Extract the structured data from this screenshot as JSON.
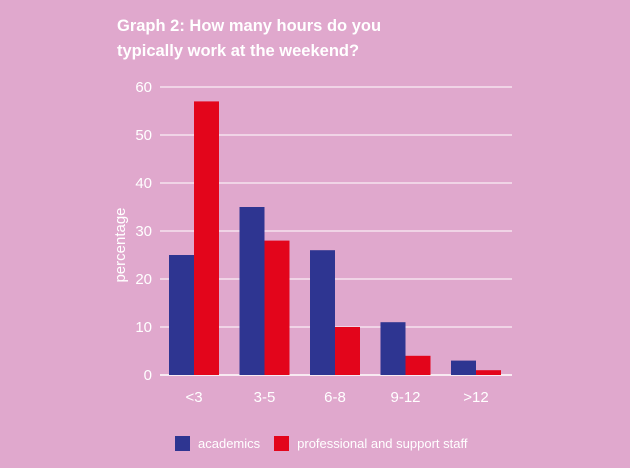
{
  "chart_data": {
    "type": "bar",
    "title_line1": "Graph 2: How many hours do you",
    "title_line2": "typically work at the weekend?",
    "ylabel": "percentage",
    "xlabel": "",
    "categories": [
      "<3",
      "3-5",
      "6-8",
      "9-12",
      ">12"
    ],
    "series": [
      {
        "name": "academics",
        "color": "#2e3591",
        "values": [
          25,
          35,
          26,
          11,
          3
        ]
      },
      {
        "name": "professional and support staff",
        "color": "#e3051b",
        "values": [
          57,
          28,
          10,
          4,
          1
        ]
      }
    ],
    "ylim": [
      0,
      60
    ],
    "yticks": [
      0,
      10,
      20,
      30,
      40,
      50,
      60
    ],
    "grid": true,
    "legend_position": "bottom"
  }
}
